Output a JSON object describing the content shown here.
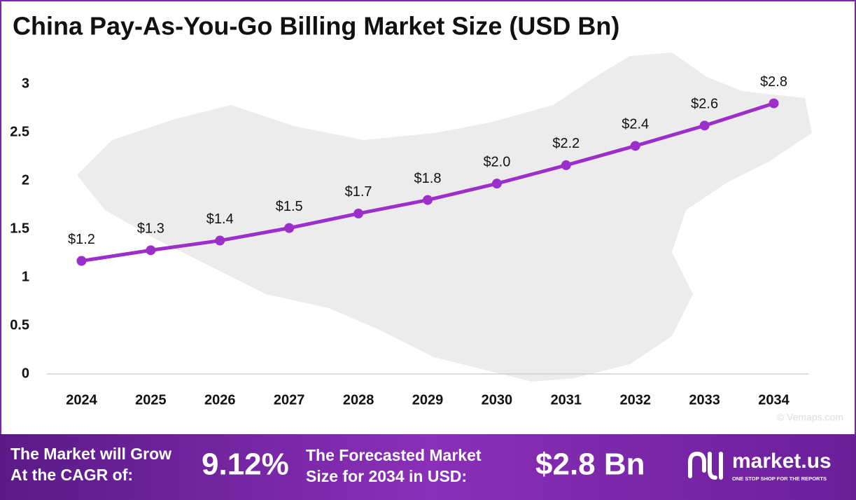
{
  "chart_data": {
    "type": "line",
    "title": "China Pay-As-You-Go Billing Market Size (USD Bn)",
    "categories": [
      "2024",
      "2025",
      "2026",
      "2027",
      "2028",
      "2029",
      "2030",
      "2031",
      "2032",
      "2033",
      "2034"
    ],
    "series": [
      {
        "name": "Market Size",
        "color": "#9c2fc9",
        "values": [
          1.17,
          1.28,
          1.38,
          1.51,
          1.66,
          1.8,
          1.97,
          2.16,
          2.36,
          2.57,
          2.8
        ],
        "value_labels": [
          "$1.2",
          "$1.3",
          "$1.4",
          "$1.5",
          "$1.7",
          "$1.8",
          "$2.0",
          "$2.2",
          "$2.4",
          "$2.6",
          "$2.8"
        ]
      }
    ],
    "ylim": [
      0,
      3
    ],
    "yticks": [
      0,
      0.5,
      1,
      1.5,
      2,
      2.5,
      3
    ],
    "grid": false
  },
  "footer": {
    "cagr_text_1": "The Market will Grow",
    "cagr_text_2": "At the CAGR of:",
    "cagr": "9.12%",
    "forecast_text_1": "The Forecasted Market",
    "forecast_text_2": "Size for 2034 in USD:",
    "forecast": "$2.8 Bn",
    "brand": "market.us",
    "brand_tagline": "ONE STOP SHOP FOR THE REPORTS",
    "map_credit": "© Vemaps.com"
  }
}
